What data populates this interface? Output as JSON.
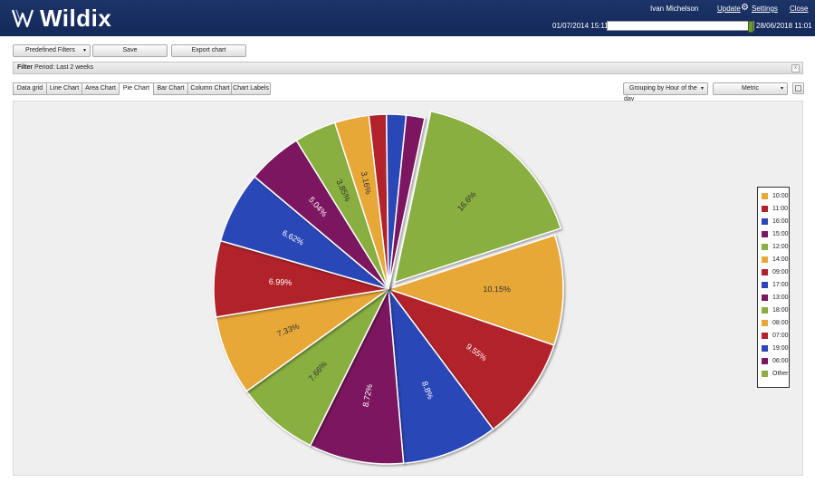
{
  "header": {
    "brand": "Wildix",
    "user": "Ivan Michelson",
    "links": {
      "update": "Update",
      "settings": "Settings",
      "close": "Close"
    },
    "date_from": "01/07/2014 15:11",
    "date_to": "28/06/2018 11:01",
    "timeline_progress": 0.98
  },
  "toolbar": {
    "predefined_filters": "Predefined Filters",
    "save": "Save",
    "export_chart": "Export chart"
  },
  "filter": {
    "label": "Filter",
    "text": "Period: Last 2 weeks",
    "close": "x"
  },
  "tabs": [
    {
      "label": "Data grid"
    },
    {
      "label": "Line Chart"
    },
    {
      "label": "Area Chart"
    },
    {
      "label": "Pie Chart",
      "active": true
    },
    {
      "label": "Bar Chart"
    },
    {
      "label": "Column Chart"
    }
  ],
  "chart_labels": "Chart Labels",
  "grouping": "Grouping by Hour of the day",
  "metric": "Metric",
  "colors": {
    "orange": "#e8a838",
    "red": "#b2222a",
    "blue": "#2b46b8",
    "purple": "#7b1661",
    "green": "#88af40"
  },
  "chart_data": {
    "type": "pie",
    "slices": [
      {
        "name": "10:00",
        "value": 10.15,
        "label": "10.15%",
        "color": "#e8a838"
      },
      {
        "name": "11:00",
        "value": 9.55,
        "label": "9.55%",
        "color": "#b2222a"
      },
      {
        "name": "16:00",
        "value": 8.8,
        "label": "8.8%",
        "color": "#2b46b8"
      },
      {
        "name": "15:00",
        "value": 8.72,
        "label": "8.72%",
        "color": "#7b1661"
      },
      {
        "name": "12:00",
        "value": 7.66,
        "label": "7.66%",
        "color": "#88af40"
      },
      {
        "name": "14:00",
        "value": 7.33,
        "label": "7.33%",
        "color": "#e8a838"
      },
      {
        "name": "09:00",
        "value": 6.99,
        "label": "6.99%",
        "color": "#b2222a"
      },
      {
        "name": "17:00",
        "value": 6.62,
        "label": "6.62%",
        "color": "#2b46b8"
      },
      {
        "name": "13:00",
        "value": 5.04,
        "label": "5.04%",
        "color": "#7b1661"
      },
      {
        "name": "18:00",
        "value": 3.85,
        "label": "3.85%",
        "color": "#88af40"
      },
      {
        "name": "08:00",
        "value": 3.16,
        "label": "3.16%",
        "color": "#e8a838"
      },
      {
        "name": "07:00",
        "value": 1.6,
        "label": "",
        "color": "#b2222a"
      },
      {
        "name": "19:00",
        "value": 1.8,
        "label": "",
        "color": "#2b46b8"
      },
      {
        "name": "06:00",
        "value": 1.7,
        "label": "",
        "color": "#7b1661"
      },
      {
        "name": "Other",
        "value": 16.6,
        "label": "16.6%",
        "color": "#88af40",
        "exploded": true
      }
    ],
    "legend_position": "right"
  }
}
